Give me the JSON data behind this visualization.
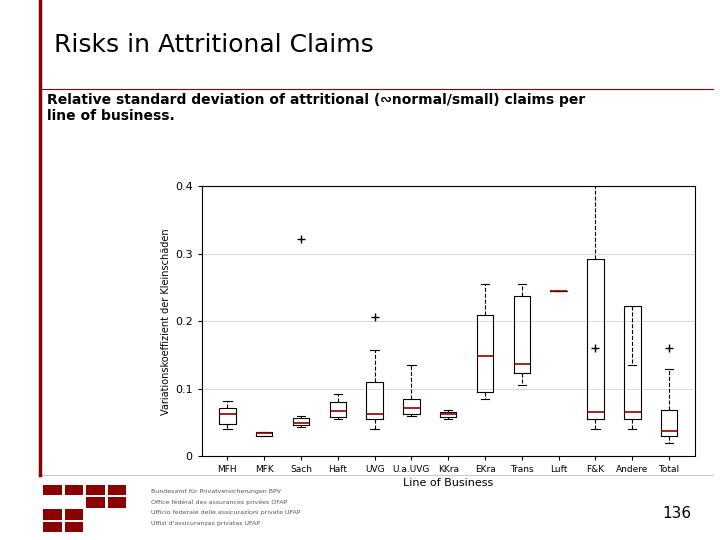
{
  "title": "Risks in Attritional Claims",
  "subtitle": "Relative standard deviation of attritional (∾normal/small) claims per\nline of business.",
  "ylabel": "Variationskoeffizient der Kleinschäden",
  "xlabel": "Line of Business",
  "categories": [
    "MFH",
    "MFK",
    "Sach",
    "Haft",
    "UVG",
    "U.a.UVG",
    "KKra",
    "EKra",
    "Trans",
    "Luft",
    "F&K",
    "Andere",
    "Total"
  ],
  "ylim": [
    0,
    0.4
  ],
  "yticks": [
    0,
    0.1,
    0.2,
    0.3,
    0.4
  ],
  "boxes": [
    {
      "q1": 0.048,
      "median": 0.063,
      "q3": 0.072,
      "whislo": 0.04,
      "whishi": 0.082,
      "fliers": []
    },
    {
      "q1": 0.03,
      "median": 0.034,
      "q3": 0.036,
      "whislo": 0.03,
      "whishi": 0.036,
      "fliers": []
    },
    {
      "q1": 0.046,
      "median": 0.05,
      "q3": 0.057,
      "whislo": 0.043,
      "whishi": 0.06,
      "fliers": [
        0.322
      ]
    },
    {
      "q1": 0.058,
      "median": 0.067,
      "q3": 0.08,
      "whislo": 0.055,
      "whishi": 0.092,
      "fliers": []
    },
    {
      "q1": 0.055,
      "median": 0.063,
      "q3": 0.11,
      "whislo": 0.04,
      "whishi": 0.158,
      "fliers": [
        0.207
      ]
    },
    {
      "q1": 0.063,
      "median": 0.071,
      "q3": 0.085,
      "whislo": 0.06,
      "whishi": 0.135,
      "fliers": []
    },
    {
      "q1": 0.058,
      "median": 0.062,
      "q3": 0.066,
      "whislo": 0.055,
      "whishi": 0.068,
      "fliers": []
    },
    {
      "q1": 0.095,
      "median": 0.148,
      "q3": 0.21,
      "whislo": 0.085,
      "whishi": 0.255,
      "fliers": []
    },
    {
      "q1": 0.123,
      "median": 0.137,
      "q3": 0.238,
      "whislo": 0.105,
      "whishi": 0.255,
      "fliers": []
    },
    {
      "q1": 0.245,
      "median": 0.245,
      "q3": 0.245,
      "whislo": 0.245,
      "whishi": 0.245,
      "fliers": []
    },
    {
      "q1": 0.055,
      "median": 0.065,
      "q3": 0.293,
      "whislo": 0.04,
      "whishi": 0.4,
      "fliers": [
        0.16
      ]
    },
    {
      "q1": 0.055,
      "median": 0.065,
      "q3": 0.222,
      "whislo": 0.04,
      "whishi": 0.135,
      "fliers": []
    },
    {
      "q1": 0.03,
      "median": 0.038,
      "q3": 0.068,
      "whislo": 0.02,
      "whishi": 0.13,
      "fliers": [
        0.16
      ]
    }
  ],
  "box_color": "black",
  "median_color": "#8B0000",
  "flier_color": "#8B0000",
  "background_color": "#ffffff",
  "title_fontsize": 18,
  "subtitle_fontsize": 10,
  "axis_fontsize": 8,
  "ylabel_fontsize": 7,
  "page_number": "136",
  "accent_color": "#8B0000",
  "grid_color": "#cccccc"
}
